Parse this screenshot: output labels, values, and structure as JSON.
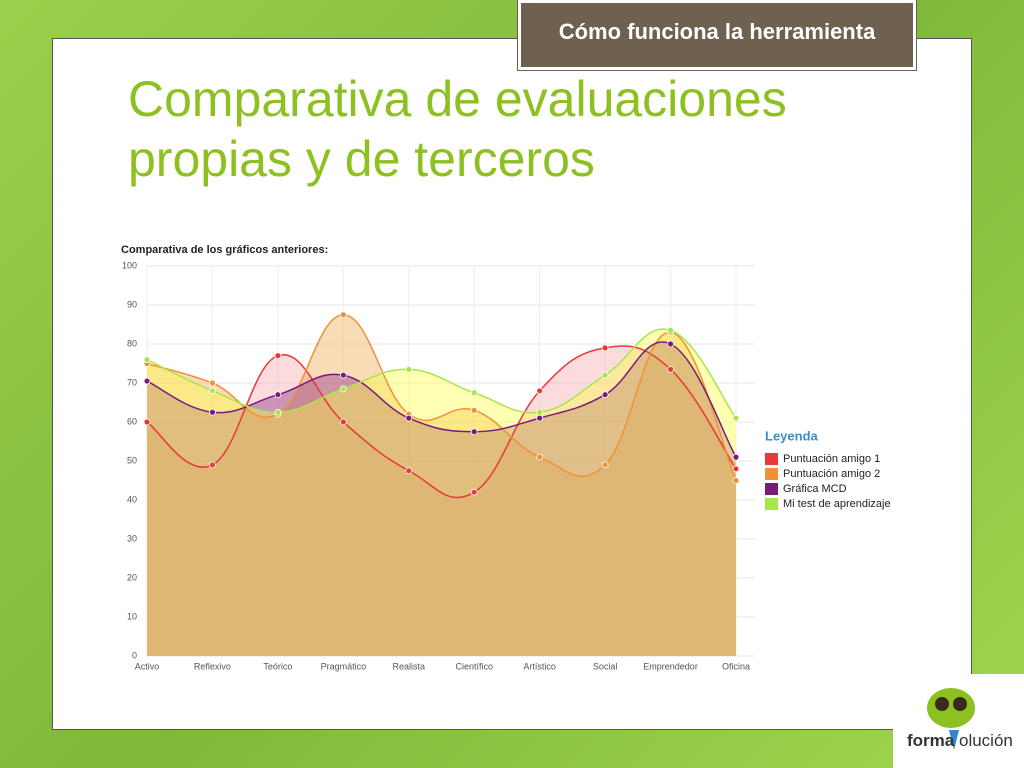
{
  "slide": {
    "header": "Cómo funciona la herramienta",
    "title_lines": [
      "Comparativa de evaluaciones",
      "propias y de terceros"
    ],
    "logo": {
      "left": "forma",
      "right": "olución"
    }
  },
  "chart_data": {
    "type": "area",
    "title": "Comparativa de los gráficos anteriores:",
    "categories": [
      "Activo",
      "Reflexivo",
      "Teórico",
      "Pragmático",
      "Realista",
      "Científico",
      "Artístico",
      "Social",
      "Emprendedor",
      "Oficina"
    ],
    "series": [
      {
        "name": "Puntuación amigo 1",
        "color": "#e8393a",
        "fill": "#f4a6a6",
        "values": [
          60,
          49,
          77,
          60,
          47.5,
          42,
          68,
          79,
          73.5,
          48
        ]
      },
      {
        "name": "Puntuación amigo 2",
        "color": "#f0913a",
        "fill": "#f0a548",
        "values": [
          75,
          70,
          62,
          87.5,
          62,
          63,
          51,
          49,
          83,
          45
        ]
      },
      {
        "name": "Gráfica MCD",
        "color": "#7b1a7a",
        "fill": "#8a2a8a",
        "values": [
          70.5,
          62.5,
          67,
          72,
          61,
          57.5,
          61,
          67,
          80,
          51
        ]
      },
      {
        "name": "Mi test de aprendizaje",
        "color": "#a6e84a",
        "fill": "#ffff40",
        "values": [
          76,
          68,
          62.5,
          68.5,
          73.5,
          67.5,
          62.5,
          72,
          83.5,
          61
        ]
      }
    ],
    "ylim": [
      0,
      100
    ],
    "yticks": [
      0,
      10,
      20,
      30,
      40,
      50,
      60,
      70,
      80,
      90,
      100
    ],
    "grid": true,
    "legend_title": "Leyenda",
    "legend": "right"
  }
}
